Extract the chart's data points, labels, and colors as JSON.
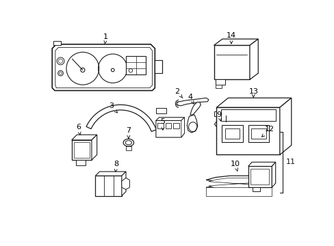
{
  "background_color": "#ffffff",
  "line_color": "#1a1a1a",
  "line_width": 0.8,
  "figure_width": 4.89,
  "figure_height": 3.6,
  "dpi": 100
}
